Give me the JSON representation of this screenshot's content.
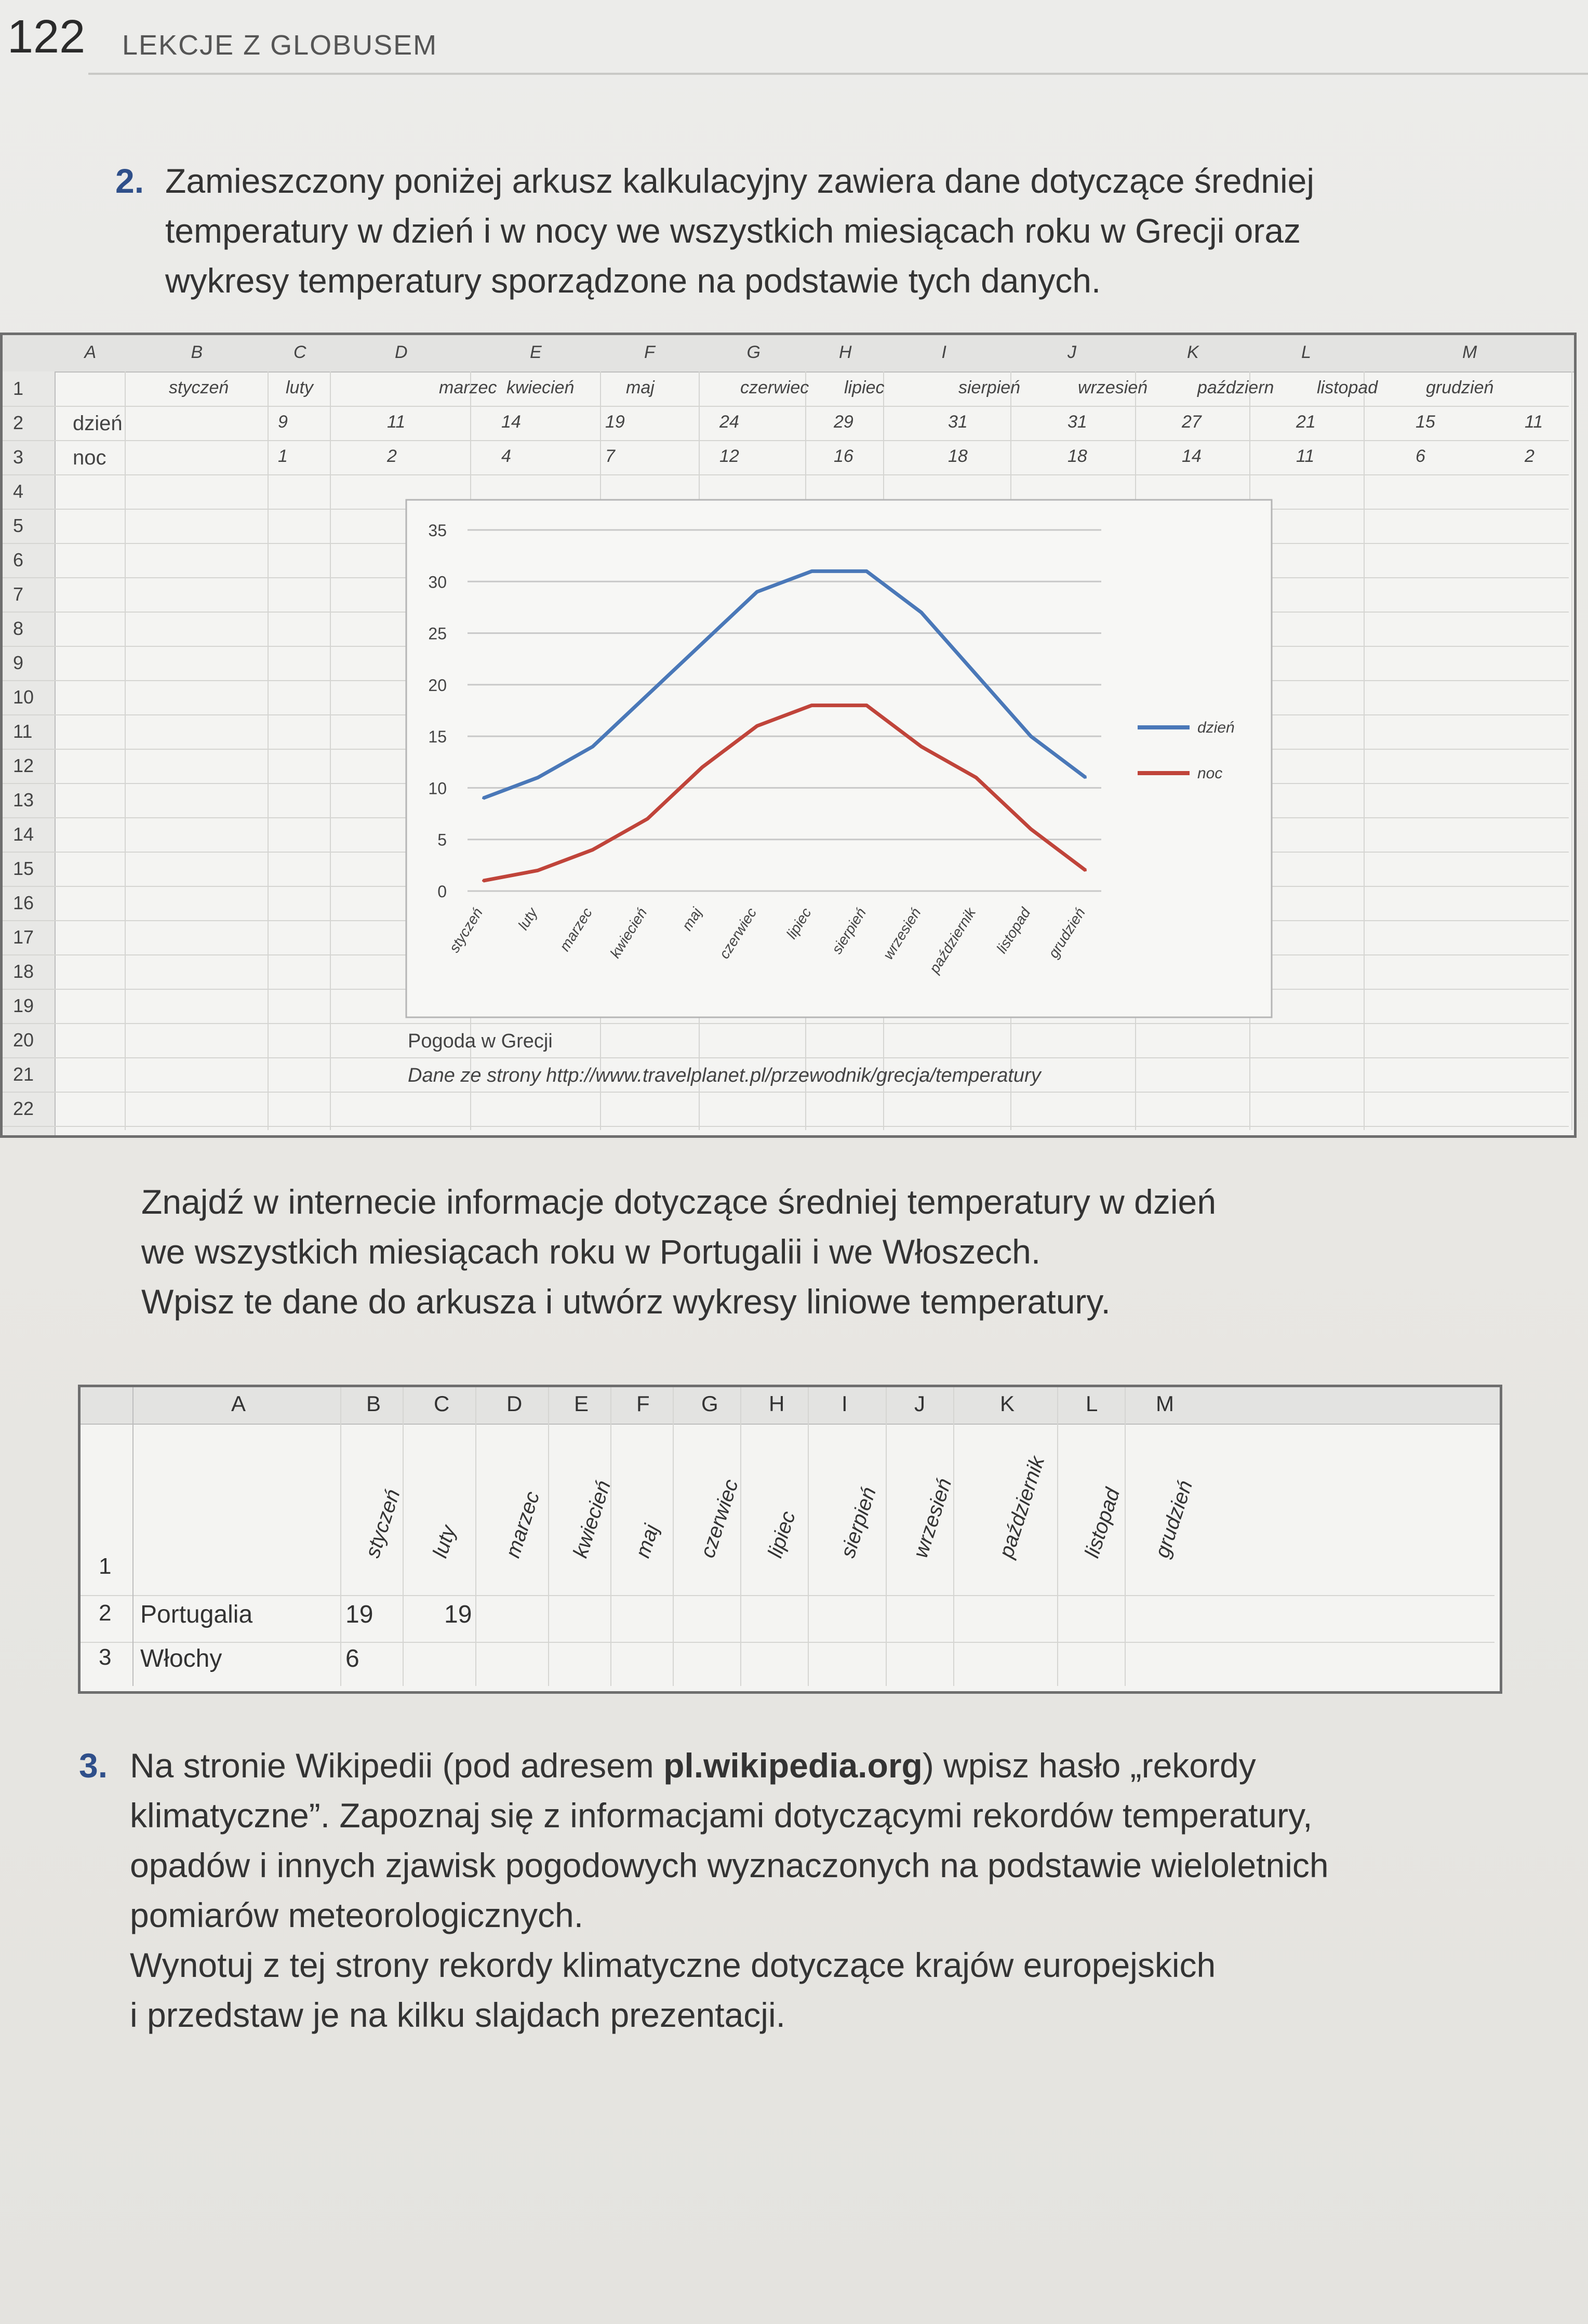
{
  "header": {
    "page_number": "122",
    "title": "LEKCJE Z GLOBUSEM"
  },
  "task2": {
    "number": "2.",
    "text": "Zamieszczony poniżej arkusz kalkulacyjny zawiera dane dotyczące średniej\ntemperatury w dzień i w nocy we wszystkich miesiącach roku w Grecji oraz\nwykresy temperatury sporządzone na podstawie tych danych.",
    "instructions": "Znajdź w internecie informacje dotyczące średniej temperatury w dzień\nwe wszystkich miesiącach roku w Portugalii i we Włoszech.\nWpisz te dane do arkusza i utwórz wykresy liniowe temperatury."
  },
  "sheet1": {
    "col_letters": [
      "A",
      "B",
      "C",
      "D",
      "E",
      "F",
      "G",
      "H",
      "I",
      "J",
      "K",
      "L",
      "M"
    ],
    "row_numbers": [
      "1",
      "2",
      "3",
      "4",
      "5",
      "6",
      "7",
      "8",
      "9",
      "10",
      "11",
      "12",
      "13",
      "14",
      "15",
      "16",
      "17",
      "18",
      "19",
      "20",
      "21",
      "22"
    ],
    "months": [
      "styczeń",
      "luty",
      "marzec",
      "kwiecień",
      "maj",
      "czerwiec",
      "lipiec",
      "sierpień",
      "wrzesień",
      "październ",
      "listopad",
      "grudzień"
    ],
    "rows": [
      {
        "label": "dzień",
        "values": [
          "9",
          "11",
          "14",
          "19",
          "24",
          "29",
          "31",
          "31",
          "27",
          "21",
          "15",
          "11"
        ]
      },
      {
        "label": "noc",
        "values": [
          "1",
          "2",
          "4",
          "7",
          "12",
          "16",
          "18",
          "18",
          "14",
          "11",
          "6",
          "2"
        ]
      }
    ],
    "caption": "Pogoda w Grecji",
    "source": "Dane ze strony http://www.travelplanet.pl/przewodnik/grecja/temperatury"
  },
  "chart_data": {
    "type": "line",
    "categories": [
      "styczeń",
      "luty",
      "marzec",
      "kwiecień",
      "maj",
      "czerwiec",
      "lipiec",
      "sierpień",
      "wrzesień",
      "październik",
      "listopad",
      "grudzień"
    ],
    "series": [
      {
        "name": "dzień",
        "values": [
          9,
          11,
          14,
          19,
          24,
          29,
          31,
          31,
          27,
          21,
          15,
          11
        ],
        "color": "#4a78b8"
      },
      {
        "name": "noc",
        "values": [
          1,
          2,
          4,
          7,
          12,
          16,
          18,
          18,
          14,
          11,
          6,
          2
        ],
        "color": "#c0443a"
      }
    ],
    "ylim": [
      0,
      35
    ],
    "yticks": [
      "0",
      "5",
      "10",
      "15",
      "20",
      "25",
      "30",
      "35"
    ],
    "grid": true,
    "legend": "right"
  },
  "sheet2": {
    "col_letters": [
      "A",
      "B",
      "C",
      "D",
      "E",
      "F",
      "G",
      "H",
      "I",
      "J",
      "K",
      "L",
      "M"
    ],
    "months": [
      "styczeń",
      "luty",
      "marzec",
      "kwiecień",
      "maj",
      "czerwiec",
      "lipiec",
      "sierpień",
      "wrzesień",
      "październik",
      "listopad",
      "grudzień"
    ],
    "row_numbers": [
      "1",
      "2",
      "3"
    ],
    "rows": [
      {
        "label": "Portugalia",
        "values": [
          "19",
          "19"
        ]
      },
      {
        "label": "Włochy",
        "values": [
          "6"
        ]
      }
    ]
  },
  "task3": {
    "number": "3.",
    "line1_pre": "Na stronie Wikipedii (pod adresem ",
    "line1_bold": "pl.wikipedia.org",
    "line1_post": ") wpisz hasło „rekordy",
    "text_rest": "klimatyczne”. Zapoznaj się z informacjami dotyczącymi rekordów temperatury,\nopadów i innych zjawisk pogodowych wyznaczonych na podstawie wieloletnich\npomiarów meteorologicznych.\nWynotuj z tej strony rekordy klimatyczne dotyczące krajów europejskich\ni przedstaw je na kilku slajdach prezentacji."
  }
}
